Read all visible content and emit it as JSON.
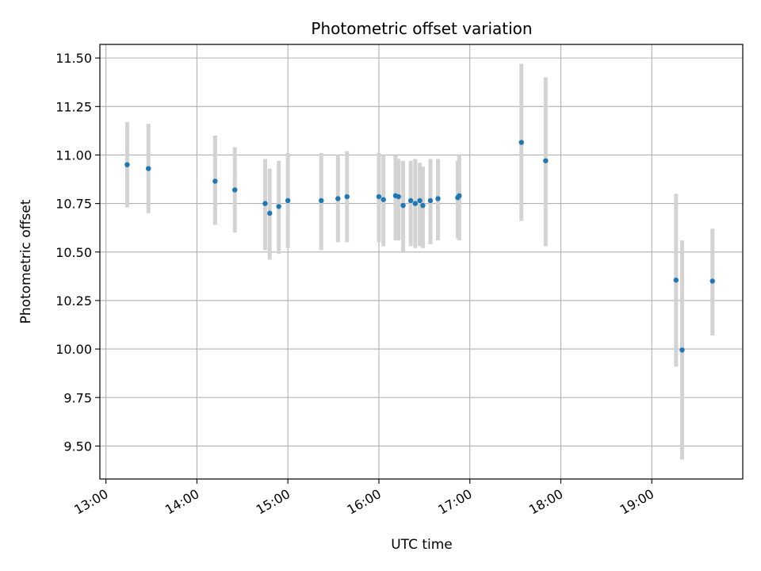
{
  "chart_data": {
    "type": "scatter",
    "title": "Photometric offset variation",
    "xlabel": "UTC time",
    "ylabel": "Photometric offset",
    "grid": true,
    "xlim": [
      "12:56",
      "20:00"
    ],
    "ylim": [
      9.33,
      11.57
    ],
    "x_ticks": [
      "13:00",
      "14:00",
      "15:00",
      "16:00",
      "17:00",
      "18:00",
      "19:00"
    ],
    "y_ticks": [
      "9.50",
      "9.75",
      "10.00",
      "10.25",
      "10.50",
      "10.75",
      "11.00",
      "11.25",
      "11.50"
    ],
    "point_color": "#1f77b4",
    "errorbar_color": "#d3d3d3",
    "series": [
      {
        "points": [
          {
            "t": "13:14",
            "y": 10.95,
            "lo": 10.73,
            "hi": 11.17
          },
          {
            "t": "13:28",
            "y": 10.93,
            "lo": 10.7,
            "hi": 11.16
          },
          {
            "t": "14:12",
            "y": 10.865,
            "lo": 10.64,
            "hi": 11.1
          },
          {
            "t": "14:25",
            "y": 10.82,
            "lo": 10.6,
            "hi": 11.04
          },
          {
            "t": "14:45",
            "y": 10.75,
            "lo": 10.51,
            "hi": 10.98
          },
          {
            "t": "14:48",
            "y": 10.7,
            "lo": 10.46,
            "hi": 10.93
          },
          {
            "t": "14:54",
            "y": 10.735,
            "lo": 10.49,
            "hi": 10.97
          },
          {
            "t": "15:00",
            "y": 10.765,
            "lo": 10.52,
            "hi": 11.01
          },
          {
            "t": "15:22",
            "y": 10.765,
            "lo": 10.51,
            "hi": 11.01
          },
          {
            "t": "15:33",
            "y": 10.775,
            "lo": 10.55,
            "hi": 11.0
          },
          {
            "t": "15:39",
            "y": 10.785,
            "lo": 10.55,
            "hi": 11.02
          },
          {
            "t": "16:00",
            "y": 10.785,
            "lo": 10.55,
            "hi": 11.01
          },
          {
            "t": "16:03",
            "y": 10.77,
            "lo": 10.53,
            "hi": 11.0
          },
          {
            "t": "16:11",
            "y": 10.79,
            "lo": 10.56,
            "hi": 11.0
          },
          {
            "t": "16:13",
            "y": 10.785,
            "lo": 10.56,
            "hi": 10.98
          },
          {
            "t": "16:16",
            "y": 10.74,
            "lo": 10.5,
            "hi": 10.97
          },
          {
            "t": "16:21",
            "y": 10.765,
            "lo": 10.53,
            "hi": 10.97
          },
          {
            "t": "16:24",
            "y": 10.75,
            "lo": 10.52,
            "hi": 10.98
          },
          {
            "t": "16:27",
            "y": 10.765,
            "lo": 10.53,
            "hi": 10.96
          },
          {
            "t": "16:29",
            "y": 10.74,
            "lo": 10.52,
            "hi": 10.94
          },
          {
            "t": "16:34",
            "y": 10.765,
            "lo": 10.54,
            "hi": 10.98
          },
          {
            "t": "16:39",
            "y": 10.775,
            "lo": 10.56,
            "hi": 10.98
          },
          {
            "t": "16:52",
            "y": 10.78,
            "lo": 10.57,
            "hi": 10.97
          },
          {
            "t": "16:53",
            "y": 10.79,
            "lo": 10.56,
            "hi": 11.0
          },
          {
            "t": "17:34",
            "y": 11.065,
            "lo": 10.66,
            "hi": 11.47
          },
          {
            "t": "17:50",
            "y": 10.97,
            "lo": 10.53,
            "hi": 11.4
          },
          {
            "t": "19:16",
            "y": 10.355,
            "lo": 9.91,
            "hi": 10.8
          },
          {
            "t": "19:20",
            "y": 9.995,
            "lo": 9.43,
            "hi": 10.56
          },
          {
            "t": "19:40",
            "y": 10.35,
            "lo": 10.07,
            "hi": 10.62
          }
        ]
      }
    ]
  }
}
